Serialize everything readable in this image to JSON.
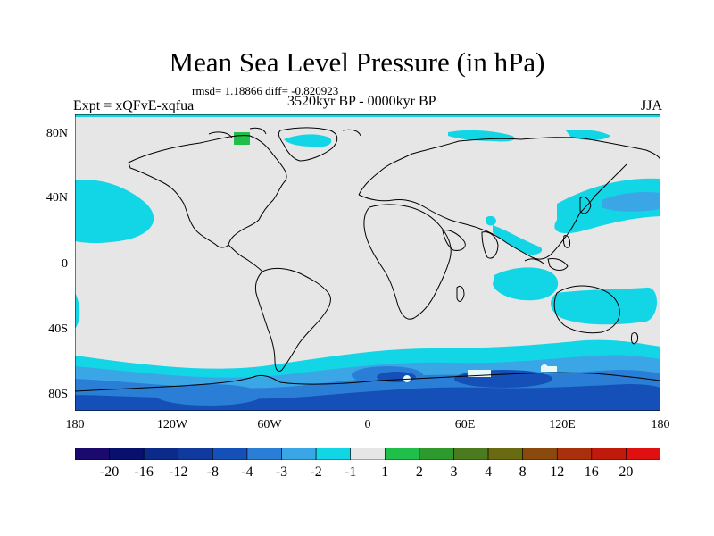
{
  "title": "Mean Sea Level Pressure (in hPa)",
  "stats_line": "rmsd= 1.18866 diff= -0.820923",
  "experiment_label": "Expt = xQFvE-xqfua",
  "period_label": "3520kyr BP - 0000kyr BP",
  "season_label": "JJA",
  "lat_ticks": [
    "80N",
    "40N",
    "0",
    "40S",
    "80S"
  ],
  "lon_ticks": [
    "180",
    "120W",
    "60W",
    "0",
    "60E",
    "120E",
    "180"
  ],
  "colorbar": {
    "labels": [
      "-20",
      "-16",
      "-12",
      "-8",
      "-4",
      "-3",
      "-2",
      "-1",
      "1",
      "2",
      "3",
      "4",
      "8",
      "12",
      "16",
      "20"
    ],
    "colors": [
      "#1a0a6e",
      "#08106e",
      "#0c2a8a",
      "#103a9e",
      "#1450b8",
      "#2a7ed6",
      "#3aa6e6",
      "#12d6e6",
      "#e6e6e6",
      "#1fbf4a",
      "#2e9a2e",
      "#4c7a1e",
      "#6a6a12",
      "#8a4a0e",
      "#a8300c",
      "#c01a0a",
      "#e01010"
    ]
  },
  "map_colors": {
    "background": "#e6e6e6",
    "anomaly_minus1": "#12d6e6",
    "anomaly_minus2": "#3aa6e6",
    "anomaly_minus3": "#2a7ed6",
    "anomaly_minus4": "#1450b8",
    "anomaly_plus2": "#1fbf4a",
    "anomaly_plus1": "#e8f8f8",
    "coastline": "#000000"
  }
}
